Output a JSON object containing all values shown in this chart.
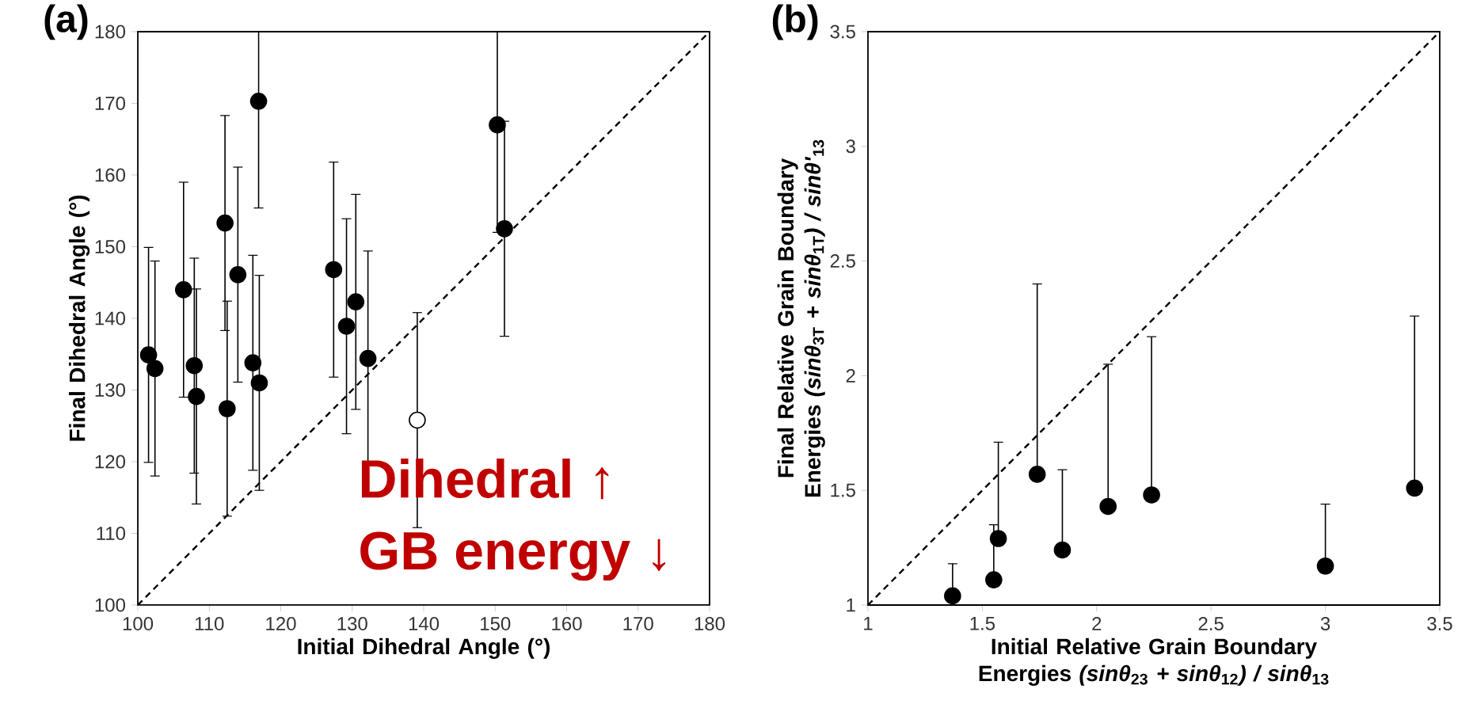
{
  "chart_data": [
    {
      "type": "scatter",
      "title": "(a)",
      "xlabel": "Initial Dihedral Angle (°)",
      "ylabel": "Final Dihedral Angle (°)",
      "xlim": [
        100,
        180
      ],
      "ylim": [
        100,
        180
      ],
      "xticks": [
        100,
        110,
        120,
        130,
        140,
        150,
        160,
        170,
        180
      ],
      "yticks": [
        100,
        110,
        120,
        130,
        140,
        150,
        160,
        170,
        180
      ],
      "marker": "circle",
      "annotations": [
        "Dihedral ↑",
        "GB energy ↓"
      ],
      "series": [
        {
          "color": "#000000",
          "x": [
            101.5,
            102.4,
            106.4,
            107.9,
            108.2,
            112.2,
            112.5,
            114.0,
            116.1,
            117.0,
            116.9,
            127.4,
            129.2,
            130.5,
            132.2,
            150.3,
            151.3
          ],
          "values": [
            134.9,
            133.0,
            144.0,
            133.4,
            129.1,
            153.3,
            127.4,
            146.1,
            133.8,
            131.0,
            170.3,
            146.8,
            138.9,
            142.3,
            134.4,
            167.0,
            152.5
          ],
          "errors": [
            15,
            15,
            15,
            15,
            15,
            15,
            15,
            15,
            15,
            15,
            [
              155.4,
              180
            ],
            15,
            15,
            15,
            15,
            [
              152,
              180
            ],
            15
          ]
        },
        {
          "color": "#ffffff",
          "x": [
            139.1
          ],
          "values": [
            125.8
          ],
          "errors": [
            15
          ]
        },
        {
          "type": "line",
          "color": "#000000",
          "marker": "none",
          "line_style": "dashed",
          "x": [
            100,
            180
          ],
          "values": [
            100,
            180
          ]
        }
      ]
    },
    {
      "type": "scatter",
      "title": "(b)",
      "xlabel": "Initial Relative Grain Boundary Energies *(sinθ*$_{23}$ *+ sinθ*$_{12}$*) / sinθ*$_{13}$",
      "ylabel": "Final Relative Grain Boundary Energies *(sinθ*$_{3T}$ *+ sinθ*$_{1T}$*) / sinθ'*$_{13}$",
      "xlim": [
        1,
        3.5
      ],
      "ylim": [
        1,
        3.5
      ],
      "xticks": [
        1,
        1.5,
        2,
        2.5,
        3,
        3.5
      ],
      "yticks": [
        1,
        1.5,
        2,
        2.5,
        3,
        3.5
      ],
      "marker": "circle",
      "series": [
        {
          "color": "#000000",
          "x": [
            1.37,
            1.55,
            1.57,
            1.74,
            1.85,
            2.05,
            2.24,
            3.0,
            3.39
          ],
          "values": [
            1.04,
            1.11,
            1.29,
            1.57,
            1.24,
            1.43,
            1.48,
            1.17,
            1.51
          ],
          "errors": [
            [
              1.04,
              1.18
            ],
            [
              1.11,
              1.35
            ],
            [
              1.29,
              1.71
            ],
            [
              1.57,
              2.4
            ],
            [
              1.24,
              1.59
            ],
            [
              1.43,
              2.05
            ],
            [
              1.48,
              2.17
            ],
            [
              1.17,
              1.44
            ],
            [
              1.51,
              2.26
            ]
          ]
        },
        {
          "type": "line",
          "color": "#000000",
          "marker": "none",
          "line_style": "dashed",
          "x": [
            1,
            3.5
          ],
          "values": [
            1,
            3.5
          ]
        }
      ]
    }
  ]
}
